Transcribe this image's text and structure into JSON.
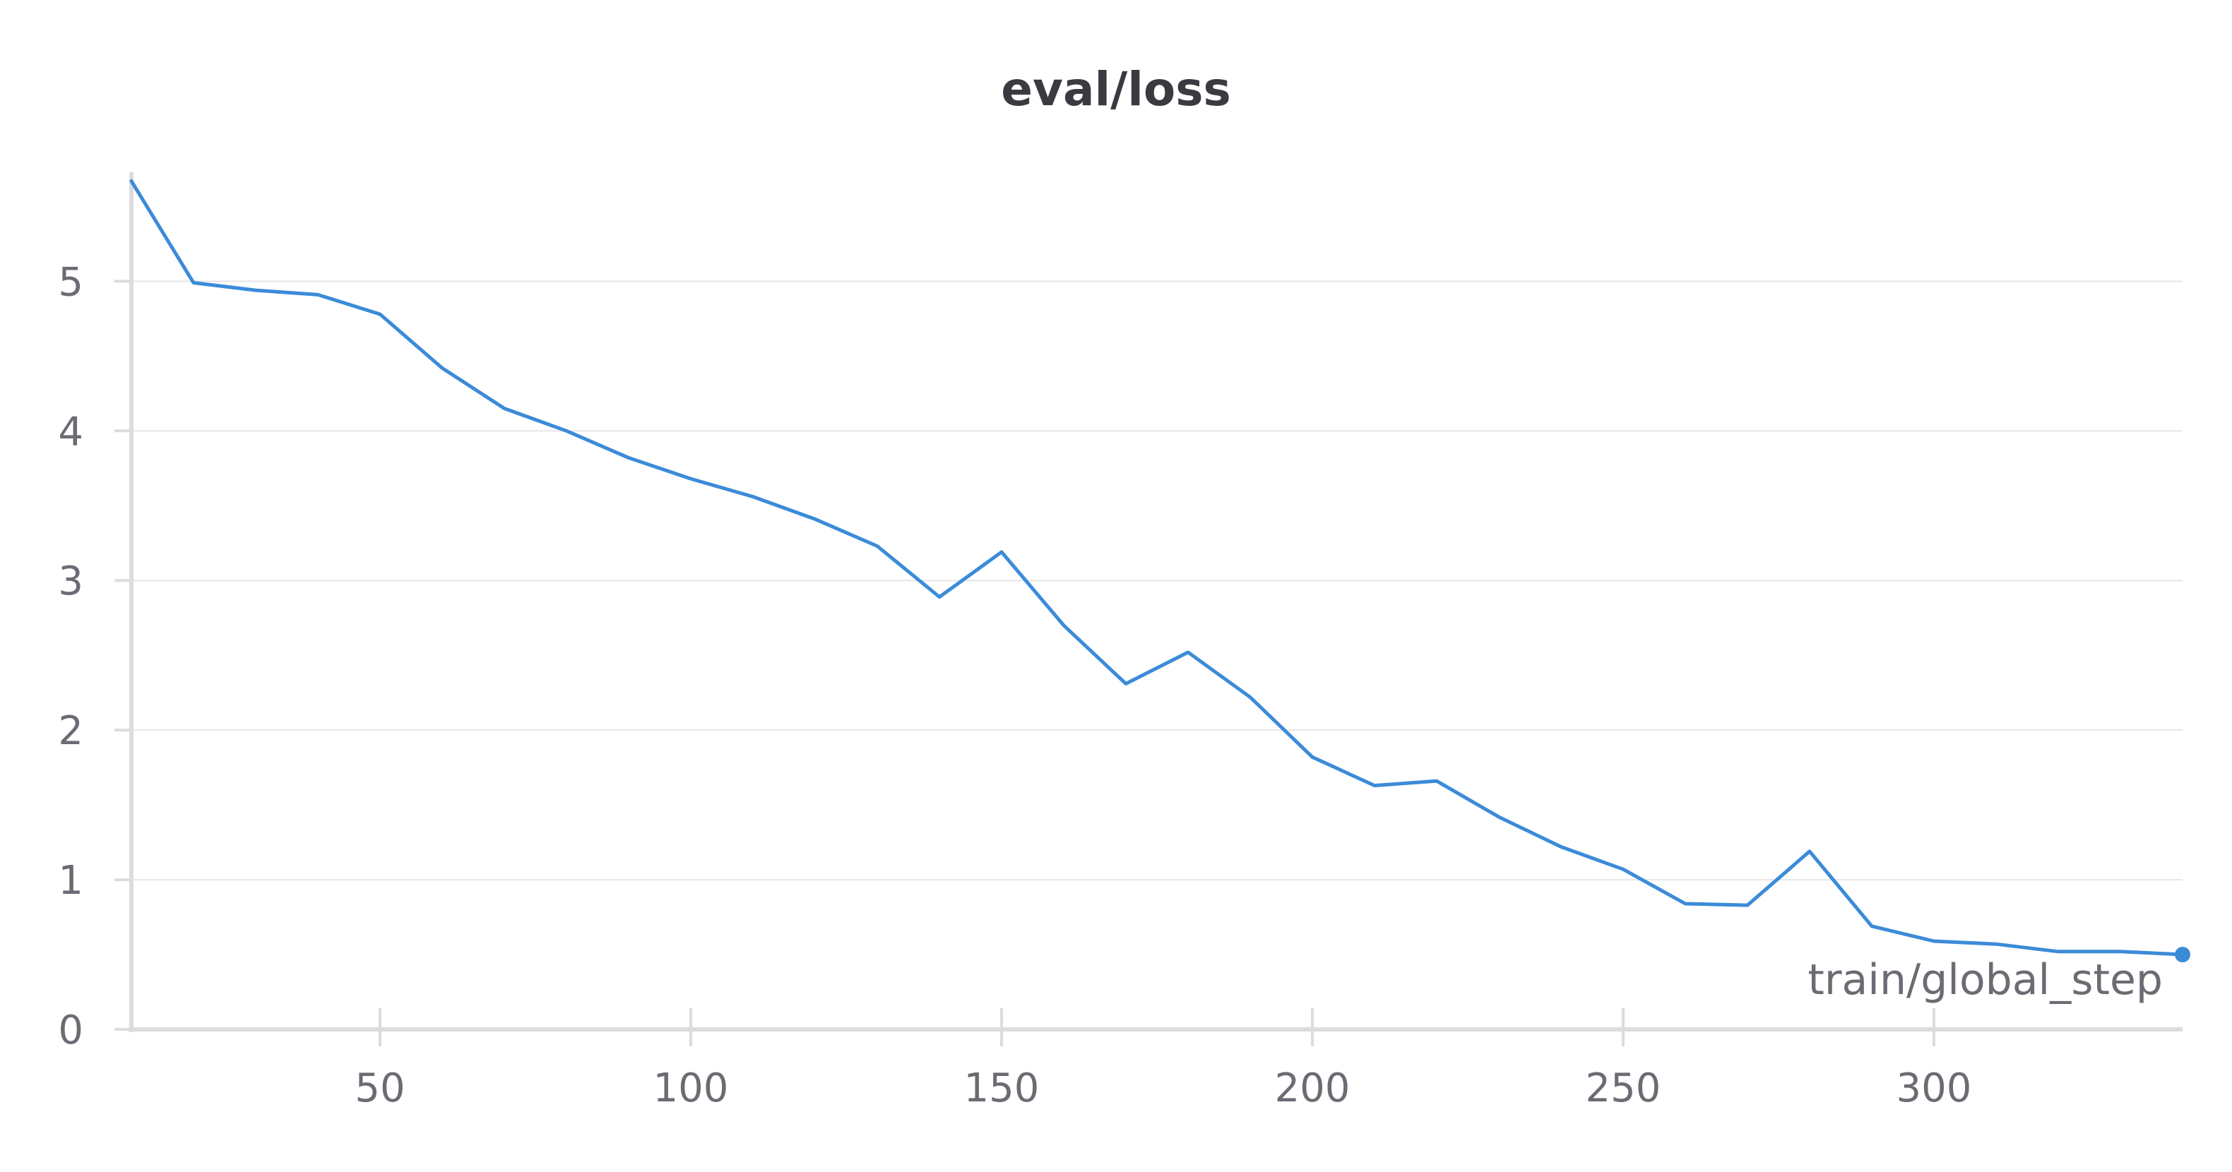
{
  "chart_data": {
    "type": "line",
    "title": "eval/loss",
    "xlabel": "train/global_step",
    "ylabel": "",
    "xlim": [
      10,
      340
    ],
    "ylim": [
      0,
      5.7
    ],
    "xticks": [
      50,
      100,
      150,
      200,
      250,
      300
    ],
    "yticks": [
      0,
      1,
      2,
      3,
      4,
      5
    ],
    "grid": true,
    "line_color": "#3b8bd8",
    "series": [
      {
        "x": [
          10,
          20,
          30,
          40,
          50,
          60,
          70,
          80,
          90,
          100,
          110,
          120,
          130,
          140,
          150,
          160,
          170,
          180,
          190,
          200,
          210,
          220,
          230,
          240,
          250,
          260,
          270,
          280,
          290,
          300,
          310,
          320,
          330,
          340
        ],
        "values": [
          5.67,
          4.99,
          4.94,
          4.91,
          4.78,
          4.42,
          4.15,
          4.0,
          3.82,
          3.68,
          3.56,
          3.41,
          3.23,
          2.89,
          3.19,
          2.7,
          2.31,
          2.52,
          2.22,
          1.82,
          1.63,
          1.66,
          1.42,
          1.22,
          1.07,
          0.84,
          0.83,
          1.19,
          0.69,
          0.59,
          0.57,
          0.52,
          0.52,
          0.5
        ]
      }
    ]
  }
}
